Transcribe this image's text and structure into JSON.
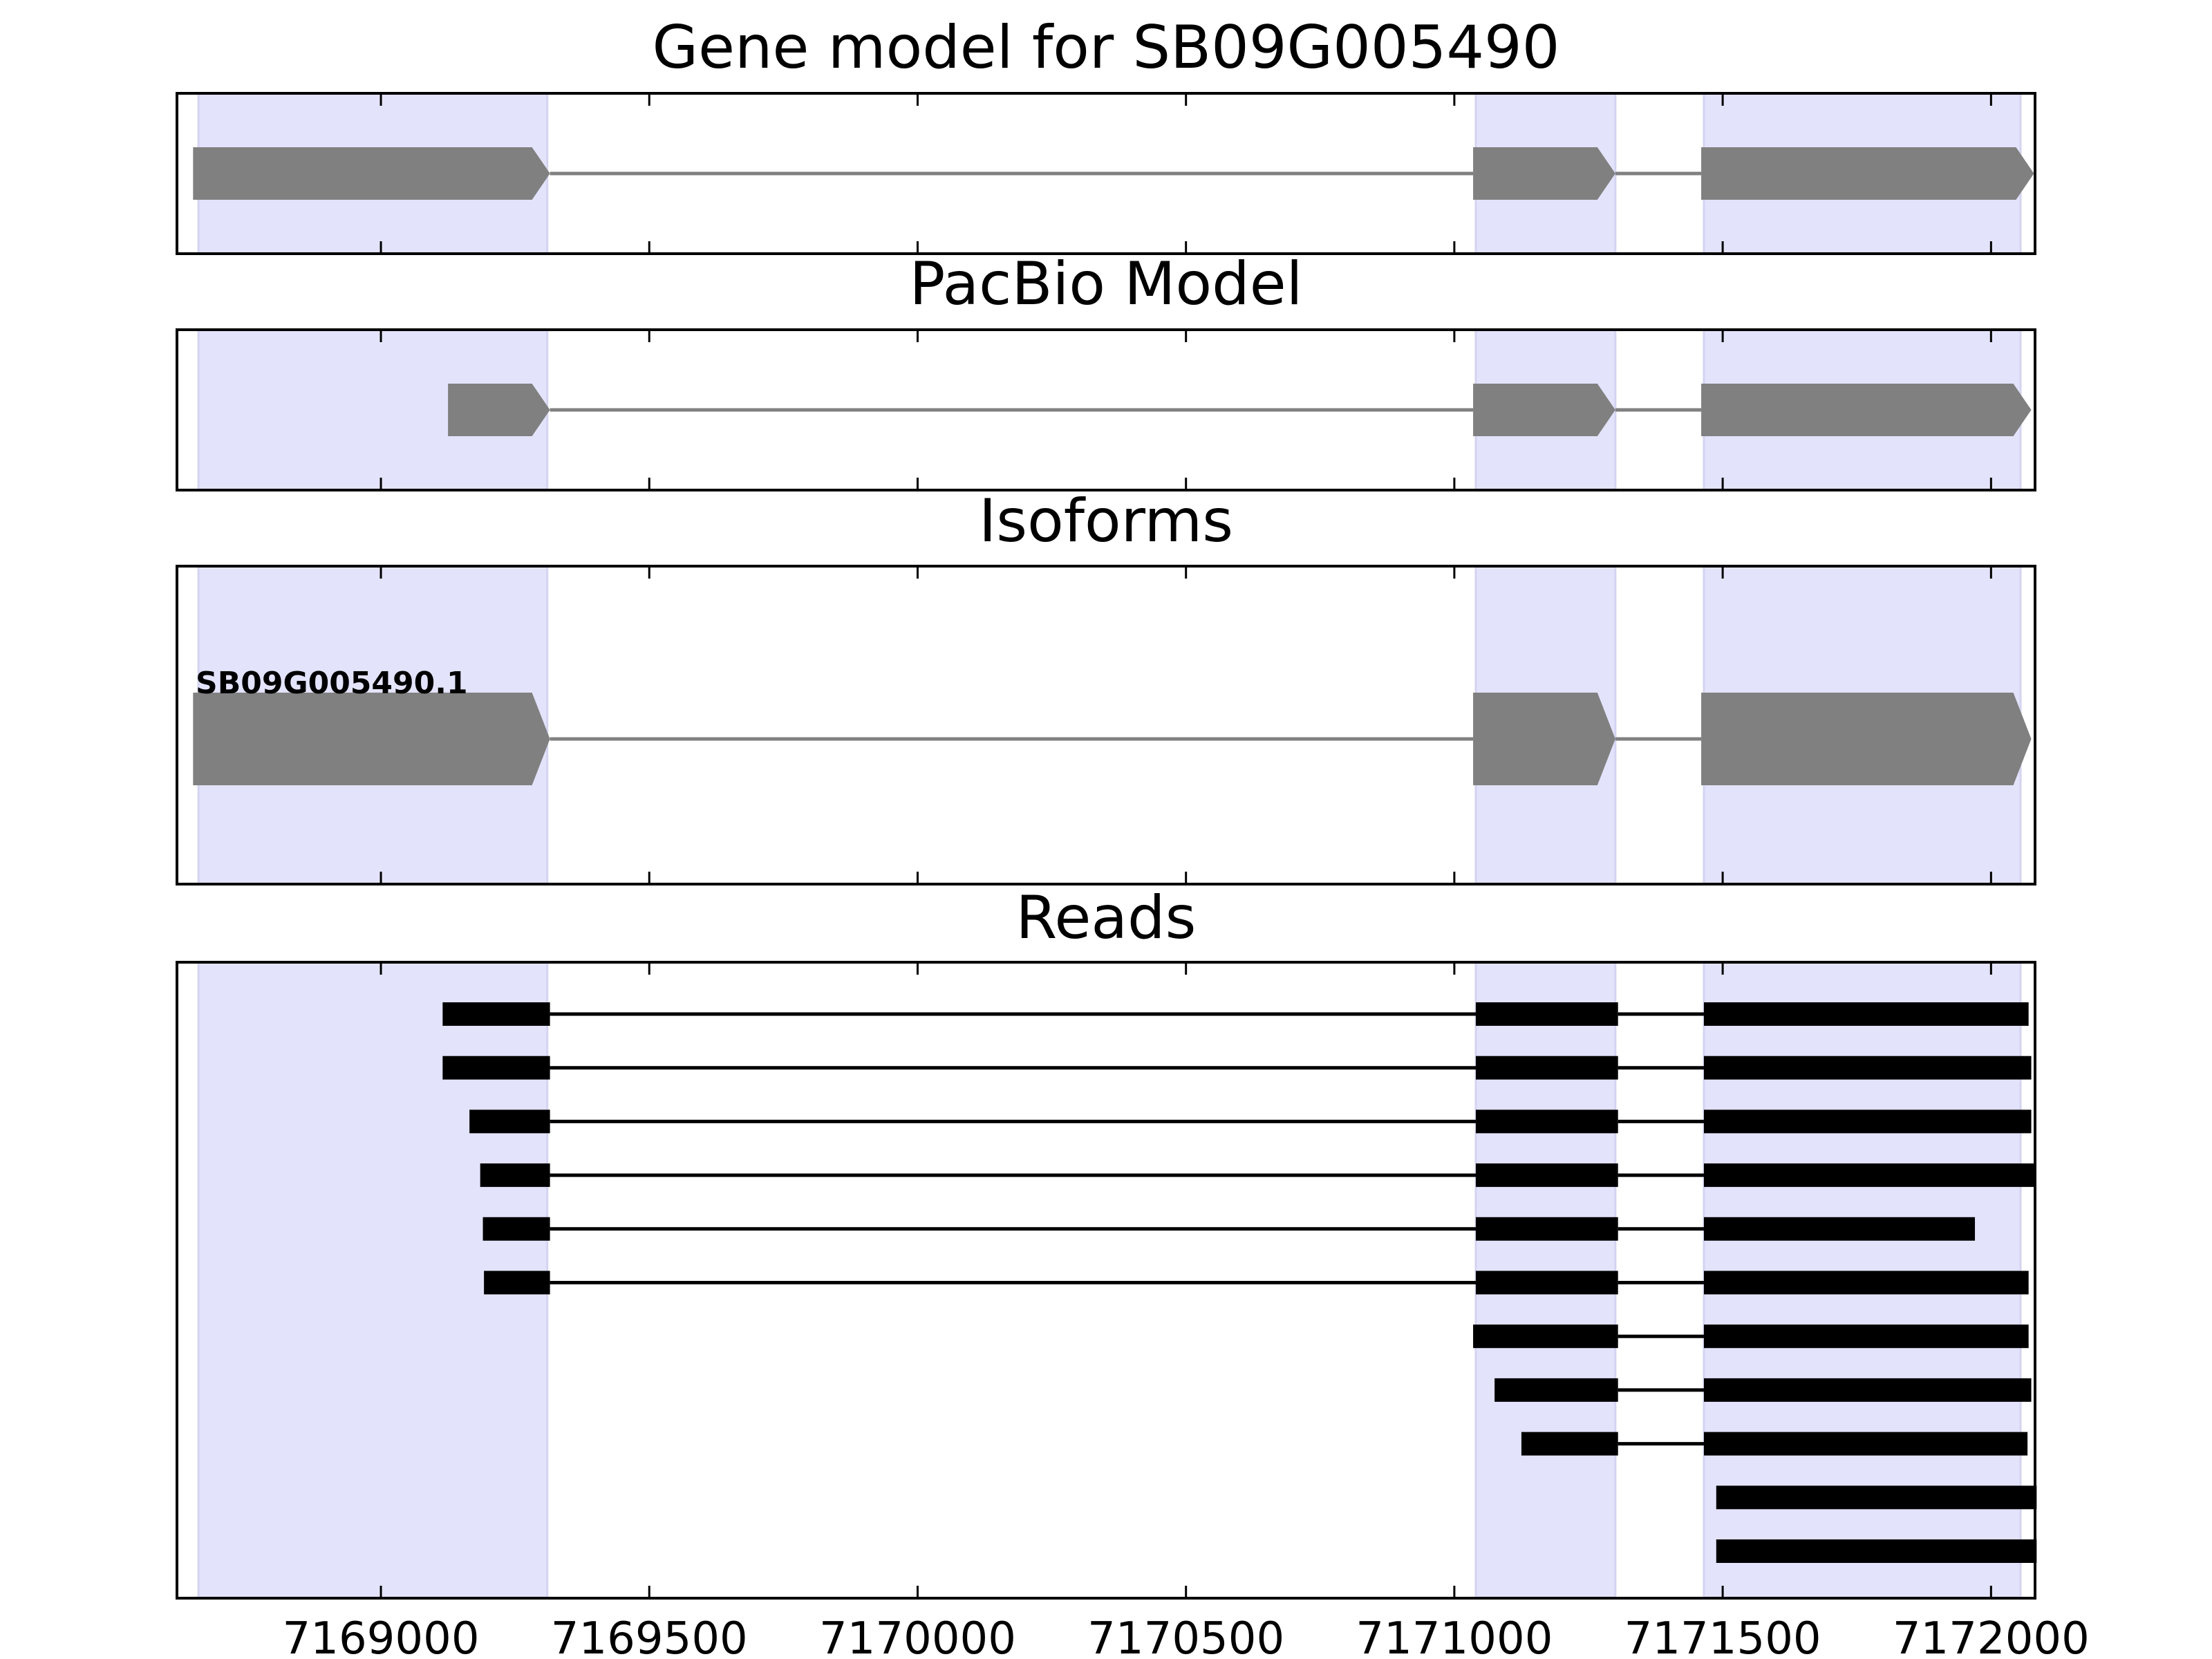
{
  "chart_data": {
    "type": "gene-structure",
    "xlim": [
      7168620,
      7172082
    ],
    "xticks": [
      7169000,
      7169500,
      7170000,
      7170500,
      7171000,
      7171500,
      7172000
    ],
    "tick_labels": [
      "7169000",
      "7169500",
      "7170000",
      "7170500",
      "7171000",
      "7171500",
      "7172000"
    ],
    "highlight_color": "#e3e3fc",
    "feature_color": "#808080",
    "read_color": "#000000",
    "highlight_regions": [
      [
        7168660,
        7169310
      ],
      [
        7171040,
        7171300
      ],
      [
        7171465,
        7172055
      ]
    ],
    "panels": [
      {
        "title": "Gene model for SB09G005490",
        "exons": [
          [
            7168650,
            7169315
          ],
          [
            7171035,
            7171300
          ],
          [
            7171460,
            7172080
          ]
        ]
      },
      {
        "title": "PacBio Model",
        "exons": [
          [
            7169125,
            7169315
          ],
          [
            7171035,
            7171300
          ],
          [
            7171460,
            7172075
          ]
        ]
      },
      {
        "title": "Isoforms",
        "isoforms": [
          {
            "label": "SB09G005490.1",
            "exons": [
              [
                7168650,
                7169315
              ],
              [
                7171035,
                7171300
              ],
              [
                7171460,
                7172075
              ]
            ]
          }
        ]
      },
      {
        "title": "Reads",
        "reads": [
          [
            [
              7169115,
              7169315
            ],
            [
              7171040,
              7171305
            ],
            [
              7171465,
              7172070
            ]
          ],
          [
            [
              7169115,
              7169315
            ],
            [
              7171040,
              7171305
            ],
            [
              7171465,
              7172075
            ]
          ],
          [
            [
              7169165,
              7169315
            ],
            [
              7171040,
              7171305
            ],
            [
              7171465,
              7172075
            ]
          ],
          [
            [
              7169185,
              7169315
            ],
            [
              7171040,
              7171305
            ],
            [
              7171465,
              7172082
            ]
          ],
          [
            [
              7169190,
              7169315
            ],
            [
              7171040,
              7171305
            ],
            [
              7171465,
              7171970
            ]
          ],
          [
            [
              7169192,
              7169315
            ],
            [
              7171040,
              7171305
            ],
            [
              7171465,
              7172070
            ]
          ],
          [
            [
              7171035,
              7171305
            ],
            [
              7171465,
              7172070
            ]
          ],
          [
            [
              7171075,
              7171305
            ],
            [
              7171465,
              7172075
            ]
          ],
          [
            [
              7171125,
              7171305
            ],
            [
              7171465,
              7172068
            ]
          ],
          [
            [
              7171488,
              7172085
            ]
          ],
          [
            [
              7171488,
              7172085
            ]
          ]
        ]
      }
    ]
  }
}
